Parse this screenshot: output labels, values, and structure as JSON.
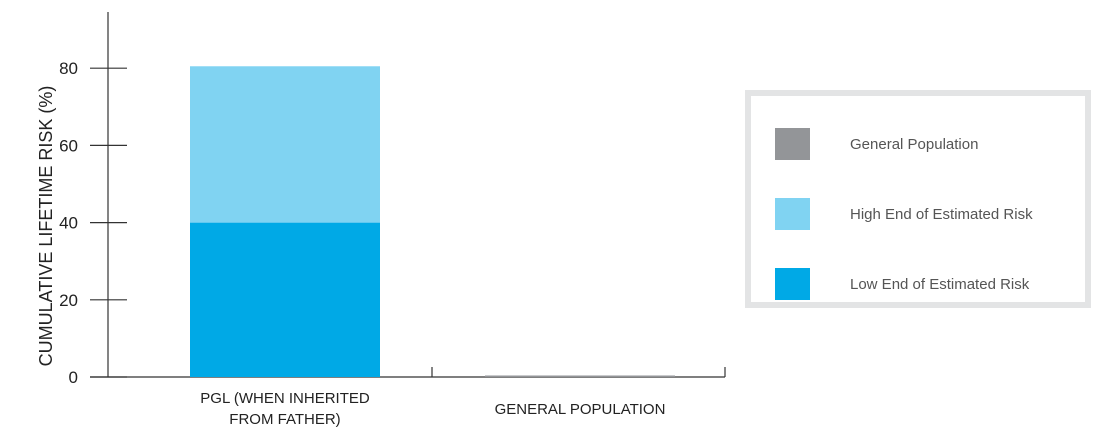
{
  "chart_data": {
    "type": "bar",
    "stacked": true,
    "ylabel": "CUMULATIVE LIFETIME RISK (%)",
    "ylim": [
      0,
      100
    ],
    "yticks": [
      0,
      20,
      40,
      60,
      80
    ],
    "categories": [
      "PGL (WHEN INHERITED FROM FATHER)",
      "GENERAL POPULATION"
    ],
    "category_lines": [
      [
        "PGL (WHEN INHERITED",
        "FROM FATHER)"
      ],
      [
        "GENERAL POPULATION"
      ]
    ],
    "series": [
      {
        "name": "Low End of Estimated Risk",
        "color": "#00a9e6",
        "values": [
          40,
          0
        ]
      },
      {
        "name": "High End of Estimated Risk",
        "color": "#80d3f2",
        "values": [
          40.5,
          0
        ]
      },
      {
        "name": "General Population",
        "color": "#939598",
        "values": [
          0,
          0.1
        ]
      }
    ],
    "legend": {
      "placement": "right",
      "items": [
        {
          "label": "General Population",
          "color": "#939598"
        },
        {
          "label": "High End of Estimated Risk",
          "color": "#80d3f2"
        },
        {
          "label": "Low End of Estimated Risk",
          "color": "#00a9e6"
        }
      ]
    },
    "grid": false
  }
}
